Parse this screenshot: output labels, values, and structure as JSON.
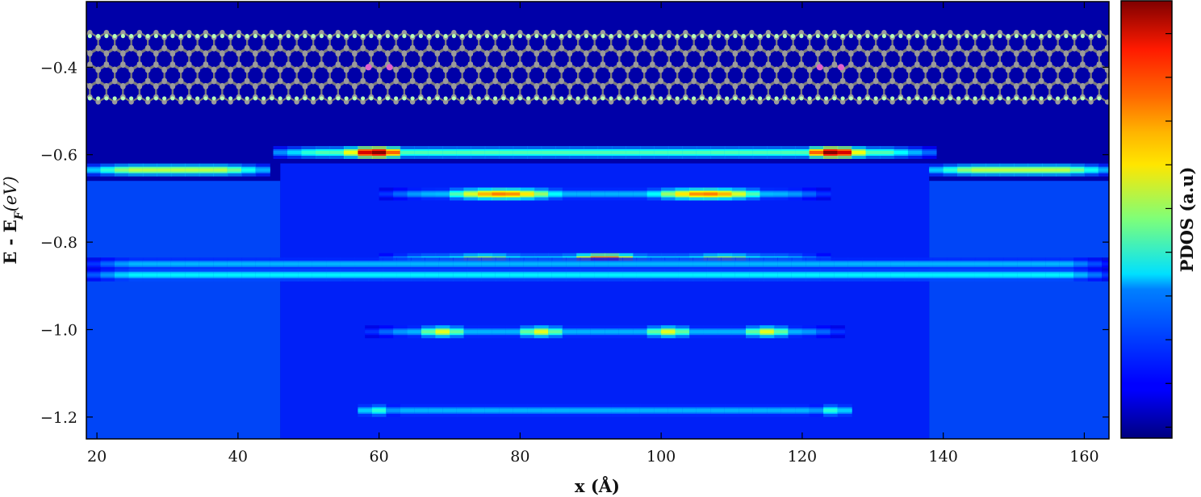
{
  "chart_data": {
    "type": "heatmap",
    "title": "",
    "xlabel": "x (Å)",
    "ylabel": "E - E",
    "ylabel_sub": "F",
    "ylabel_unit": "(eV)",
    "colorbar_label": "PDOS (a.u)",
    "colormap": "jet",
    "xlim": [
      18.5,
      163.5
    ],
    "ylim": [
      -1.25,
      -0.25
    ],
    "x_ticks": [
      20,
      40,
      60,
      80,
      100,
      120,
      140,
      160
    ],
    "x_tick_labels": [
      "20",
      "40",
      "60",
      "80",
      "100",
      "120",
      "140",
      "160"
    ],
    "y_ticks": [
      -0.4,
      -0.6,
      -0.8,
      -1.0,
      -1.2
    ],
    "y_tick_labels": [
      "−0.4",
      "−0.6",
      "−0.8",
      "−1.0",
      "−1.2"
    ],
    "colorbar_range": [
      0,
      1
    ],
    "colorbar_ticks": [
      0.025,
      0.125,
      0.225,
      0.325,
      0.425,
      0.525,
      0.625,
      0.725,
      0.825,
      0.925
    ],
    "grid": false,
    "inset": {
      "type": "nanoribbon-structure",
      "x_range": [
        19,
        163
      ],
      "y_range": [
        -0.475,
        -0.325
      ],
      "dopant_x": [
        58.5,
        61.5,
        122.5,
        125.5
      ],
      "dopant_color": "#e060d0",
      "carbon_color": "#9a9a9a",
      "hydrogen_color": "#b8ffb8"
    },
    "bands": [
      {
        "energy": -0.595,
        "x_start": 45,
        "x_end": 138,
        "peaks": [
          {
            "x": 59.5,
            "width": 5,
            "intensity": 1.0
          },
          {
            "x": 124.5,
            "width": 5,
            "intensity": 1.0
          }
        ],
        "base_intensity": 0.45
      },
      {
        "energy": -0.635,
        "x_start": 18.5,
        "x_end": 44,
        "base_intensity": 0.55
      },
      {
        "energy": -0.635,
        "x_start": 138,
        "x_end": 163.5,
        "base_intensity": 0.55
      },
      {
        "energy": -0.69,
        "x_start": 60,
        "x_end": 124,
        "peaks": [
          {
            "x": 77.5,
            "width": 9,
            "intensity": 0.75
          },
          {
            "x": 106.5,
            "width": 9,
            "intensity": 0.75
          }
        ],
        "base_intensity": 0.3
      },
      {
        "energy": -0.84,
        "x_start": 60,
        "x_end": 124,
        "peaks": [
          {
            "x": 75,
            "width": 7,
            "intensity": 0.62
          },
          {
            "x": 92,
            "width": 6,
            "intensity": 0.9
          },
          {
            "x": 109,
            "width": 7,
            "intensity": 0.62
          }
        ],
        "base_intensity": 0.4
      },
      {
        "energy": -0.85,
        "x_start": 18.5,
        "x_end": 163.5,
        "base_intensity": 0.3
      },
      {
        "energy": -0.875,
        "x_start": 18.5,
        "x_end": 163.5,
        "base_intensity": 0.36
      },
      {
        "energy": -1.005,
        "x_start": 58,
        "x_end": 126,
        "peaks": [
          {
            "x": 69,
            "width": 4,
            "intensity": 0.6
          },
          {
            "x": 83,
            "width": 4,
            "intensity": 0.6
          },
          {
            "x": 101,
            "width": 4,
            "intensity": 0.6
          },
          {
            "x": 115,
            "width": 4,
            "intensity": 0.6
          }
        ],
        "base_intensity": 0.3
      },
      {
        "energy": -1.185,
        "x_start": 57,
        "x_end": 127,
        "peaks": [
          {
            "x": 59.5,
            "width": 3,
            "intensity": 0.42
          },
          {
            "x": 124.5,
            "width": 3,
            "intensity": 0.42
          }
        ],
        "base_intensity": 0.3
      }
    ]
  }
}
